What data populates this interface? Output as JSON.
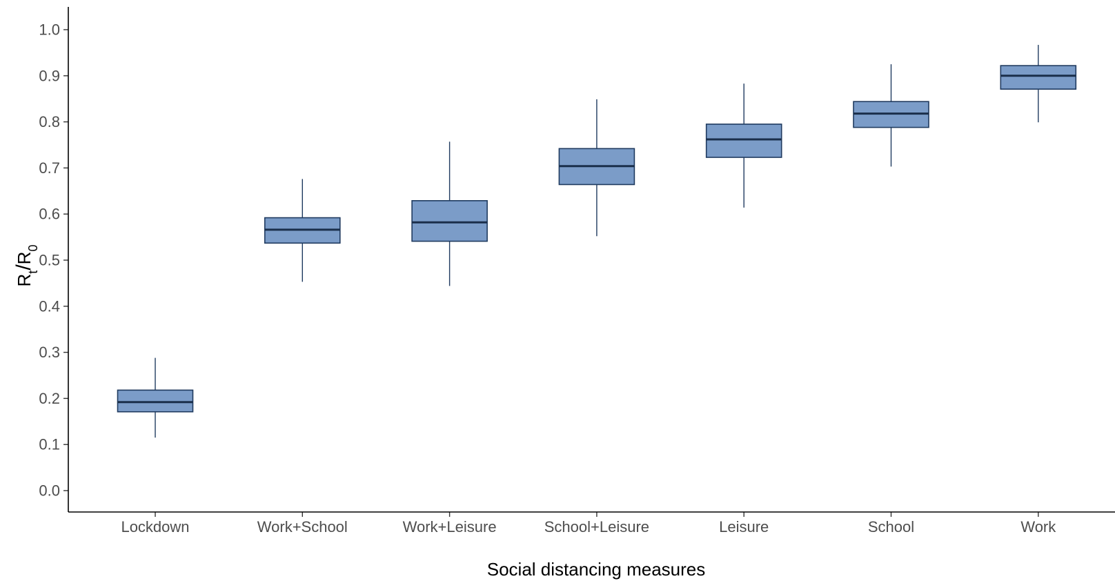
{
  "chart_data": {
    "type": "boxplot",
    "title": "",
    "xlabel": "Social distancing measures",
    "ylabel": {
      "main": "R",
      "sub1": "t",
      "slash": "/",
      "main2": "R",
      "sub2": "0"
    },
    "ylim": [
      -0.05,
      1.05
    ],
    "yticks": [
      "0.0",
      "0.1",
      "0.2",
      "0.3",
      "0.4",
      "0.5",
      "0.6",
      "0.7",
      "0.8",
      "0.9",
      "1.0"
    ],
    "categories": [
      "Lockdown",
      "Work+School",
      "Work+Leisure",
      "School+Leisure",
      "Leisure",
      "School",
      "Work"
    ],
    "boxes": [
      {
        "category": "Lockdown",
        "min": 0.115,
        "q1": 0.171,
        "median": 0.192,
        "q3": 0.218,
        "max": 0.288
      },
      {
        "category": "Work+School",
        "min": 0.453,
        "q1": 0.537,
        "median": 0.566,
        "q3": 0.592,
        "max": 0.676
      },
      {
        "category": "Work+Leisure",
        "min": 0.444,
        "q1": 0.541,
        "median": 0.582,
        "q3": 0.629,
        "max": 0.757
      },
      {
        "category": "School+Leisure",
        "min": 0.552,
        "q1": 0.664,
        "median": 0.704,
        "q3": 0.742,
        "max": 0.849
      },
      {
        "category": "Leisure",
        "min": 0.614,
        "q1": 0.723,
        "median": 0.762,
        "q3": 0.795,
        "max": 0.883
      },
      {
        "category": "School",
        "min": 0.703,
        "q1": 0.788,
        "median": 0.818,
        "q3": 0.844,
        "max": 0.925
      },
      {
        "category": "Work",
        "min": 0.799,
        "q1": 0.871,
        "median": 0.9,
        "q3": 0.922,
        "max": 0.967
      }
    ],
    "box_fill": "#7b9cc8",
    "box_stroke": "#1f3a5f",
    "median_stroke": "#1a2e4a",
    "grid": false,
    "legend": "none"
  }
}
